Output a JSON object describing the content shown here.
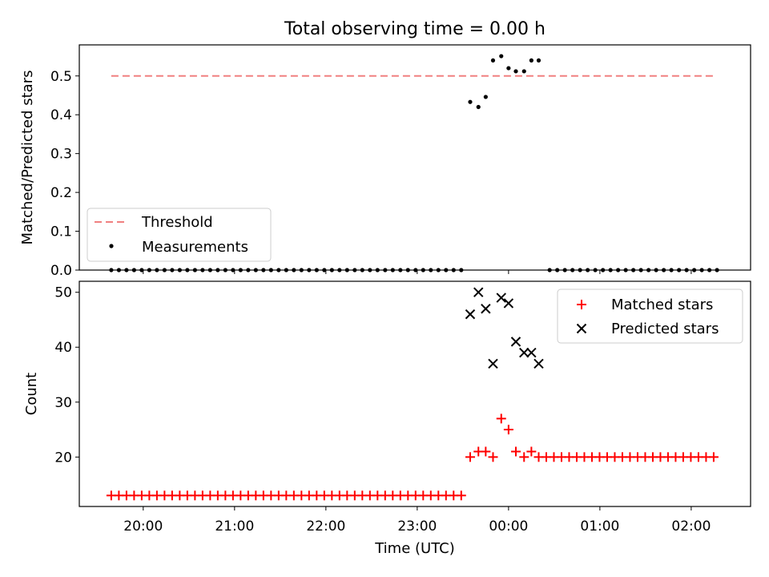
{
  "title": "Total observing time = 0.00 h",
  "xlabel": "Time (UTC)",
  "x_tick_labels": [
    "20:00",
    "21:00",
    "22:00",
    "23:00",
    "00:00",
    "01:00",
    "02:00"
  ],
  "chart_data": [
    {
      "type": "scatter",
      "ylabel": "Matched/Predicted stars",
      "ylim": [
        0,
        0.58
      ],
      "y_ticks": [
        "0.0",
        "0.1",
        "0.2",
        "0.3",
        "0.4",
        "0.5"
      ],
      "xlim_hours": [
        19.3,
        26.65
      ],
      "legend": {
        "placement": "lower-left",
        "entries": [
          "Threshold",
          "Measurements"
        ]
      },
      "threshold": {
        "name": "Threshold",
        "value": 0.5,
        "x_start": 19.65,
        "x_end": 26.25,
        "color": "#f08080"
      },
      "measurements": {
        "name": "Measurements",
        "color": "#000000",
        "zero_runs": [
          {
            "start": 19.65,
            "end": 23.5,
            "step": 0.0833
          },
          {
            "start": 24.45,
            "end": 26.3,
            "step": 0.0833
          }
        ],
        "points": [
          {
            "x": 23.58,
            "y": 0.433
          },
          {
            "x": 23.67,
            "y": 0.42
          },
          {
            "x": 23.75,
            "y": 0.446
          },
          {
            "x": 23.83,
            "y": 0.54
          },
          {
            "x": 23.92,
            "y": 0.551
          },
          {
            "x": 24.0,
            "y": 0.52
          },
          {
            "x": 24.08,
            "y": 0.512
          },
          {
            "x": 24.17,
            "y": 0.512
          },
          {
            "x": 24.25,
            "y": 0.54
          },
          {
            "x": 24.33,
            "y": 0.54
          }
        ]
      }
    },
    {
      "type": "scatter",
      "ylabel": "Count",
      "ylim": [
        11,
        52
      ],
      "y_ticks": [
        "20",
        "30",
        "40",
        "50"
      ],
      "xlim_hours": [
        19.3,
        26.65
      ],
      "legend": {
        "placement": "top-right",
        "entries": [
          "Matched stars",
          "Predicted stars"
        ]
      },
      "series": [
        {
          "name": "Matched stars",
          "marker": "plus",
          "color": "#ff0000",
          "runs": [
            {
              "start": 19.65,
              "end": 23.5,
              "step": 0.0833,
              "y": 13
            },
            {
              "start": 24.33,
              "end": 26.3,
              "step": 0.0833,
              "y": 20
            }
          ],
          "points": [
            {
              "x": 23.58,
              "y": 20
            },
            {
              "x": 23.67,
              "y": 21
            },
            {
              "x": 23.75,
              "y": 21
            },
            {
              "x": 23.83,
              "y": 20
            },
            {
              "x": 23.92,
              "y": 27
            },
            {
              "x": 24.0,
              "y": 25
            },
            {
              "x": 24.08,
              "y": 21
            },
            {
              "x": 24.17,
              "y": 20
            },
            {
              "x": 24.25,
              "y": 21
            }
          ]
        },
        {
          "name": "Predicted stars",
          "marker": "x",
          "color": "#000000",
          "points": [
            {
              "x": 23.58,
              "y": 46
            },
            {
              "x": 23.67,
              "y": 50
            },
            {
              "x": 23.75,
              "y": 47
            },
            {
              "x": 23.83,
              "y": 37
            },
            {
              "x": 23.92,
              "y": 49
            },
            {
              "x": 24.0,
              "y": 48
            },
            {
              "x": 24.08,
              "y": 41
            },
            {
              "x": 24.17,
              "y": 39
            },
            {
              "x": 24.25,
              "y": 39
            },
            {
              "x": 24.33,
              "y": 37
            }
          ]
        }
      ]
    }
  ]
}
